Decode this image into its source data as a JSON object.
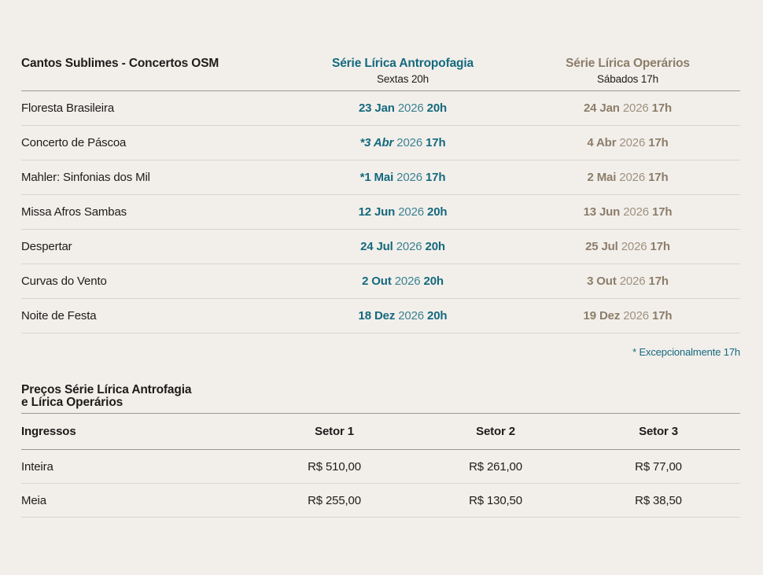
{
  "colors": {
    "background": "#f2efeb",
    "text": "#1d1c1a",
    "series_antropofagia": "#14697d",
    "series_operarios": "#8c7d69",
    "divider_light": "#d9d6d1",
    "divider_dark": "#9b9892"
  },
  "concerts": {
    "title": "Cantos Sublimes - Concertos OSM",
    "series": [
      {
        "name": "Série Lírica Antropofagia",
        "subtitle": "Sextas 20h",
        "color": "#14697d"
      },
      {
        "name": "Série Lírica Operários",
        "subtitle": "Sábados 17h",
        "color": "#8c7d69"
      }
    ],
    "rows": [
      {
        "name": "Floresta Brasileira",
        "a": {
          "day": "23 Jan",
          "year": "2026",
          "time": "20h",
          "italic": false
        },
        "b": {
          "day": "24 Jan",
          "year": "2026",
          "time": "17h"
        }
      },
      {
        "name": "Concerto de Páscoa",
        "a": {
          "day": "*3 Abr",
          "year": "2026",
          "time": "17h",
          "italic": true
        },
        "b": {
          "day": "4 Abr",
          "year": "2026",
          "time": "17h"
        }
      },
      {
        "name": "Mahler: Sinfonias dos Mil",
        "a": {
          "day": "*1 Mai",
          "year": "2026",
          "time": "17h",
          "italic": false
        },
        "b": {
          "day": "2 Mai",
          "year": "2026",
          "time": "17h"
        }
      },
      {
        "name": "Missa Afros Sambas",
        "a": {
          "day": "12 Jun",
          "year": "2026",
          "time": "20h",
          "italic": false
        },
        "b": {
          "day": "13 Jun",
          "year": "2026",
          "time": "17h"
        }
      },
      {
        "name": "Despertar",
        "a": {
          "day": "24 Jul",
          "year": "2026",
          "time": "20h",
          "italic": false
        },
        "b": {
          "day": "25 Jul",
          "year": "2026",
          "time": "17h"
        }
      },
      {
        "name": "Curvas do Vento",
        "a": {
          "day": "2 Out",
          "year": "2026",
          "time": "20h",
          "italic": false
        },
        "b": {
          "day": "3 Out",
          "year": "2026",
          "time": "17h"
        }
      },
      {
        "name": "Noite de Festa",
        "a": {
          "day": "18 Dez",
          "year": "2026",
          "time": "20h",
          "italic": false
        },
        "b": {
          "day": "19 Dez",
          "year": "2026",
          "time": "17h"
        }
      }
    ],
    "footnote": "* Excepcionalmente 17h"
  },
  "prices": {
    "title_line1": "Preços Série Lírica Antrofagia",
    "title_line2": "e Lírica Operários",
    "header": {
      "label": "Ingressos",
      "col1": "Setor 1",
      "col2": "Setor 2",
      "col3": "Setor 3"
    },
    "rows": [
      {
        "label": "Inteira",
        "v1": "R$ 510,00",
        "v2": "R$ 261,00",
        "v3": "R$ 77,00"
      },
      {
        "label": "Meia",
        "v1": "R$ 255,00",
        "v2": "R$ 130,50",
        "v3": "R$ 38,50"
      }
    ]
  }
}
